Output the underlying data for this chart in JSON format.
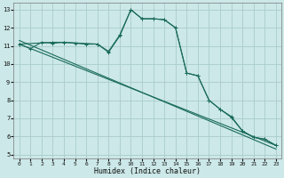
{
  "xlabel": "Humidex (Indice chaleur)",
  "background_color": "#cce8e8",
  "grid_color": "#aacccc",
  "line_color": "#1a6b5a",
  "xlim": [
    -0.5,
    23.5
  ],
  "ylim": [
    4.8,
    13.4
  ],
  "yticks": [
    5,
    6,
    7,
    8,
    9,
    10,
    11,
    12,
    13
  ],
  "xticks": [
    0,
    1,
    2,
    3,
    4,
    5,
    6,
    7,
    8,
    9,
    10,
    11,
    12,
    13,
    14,
    15,
    16,
    17,
    18,
    19,
    20,
    21,
    22,
    23
  ],
  "series1_x": [
    0,
    1,
    2,
    3,
    4,
    5,
    6,
    7,
    8,
    9,
    10,
    11,
    12,
    13,
    14,
    15,
    16,
    17,
    18,
    19,
    20,
    21,
    22,
    23
  ],
  "series1_y": [
    11.1,
    10.85,
    11.2,
    11.15,
    11.2,
    11.15,
    11.1,
    11.1,
    10.7,
    11.6,
    13.0,
    12.5,
    12.5,
    12.45,
    12.0,
    9.5,
    9.35,
    8.0,
    7.5,
    7.1,
    6.3,
    5.95,
    5.85,
    5.5
  ],
  "series2_x": [
    0,
    3,
    4,
    7,
    8,
    9,
    10,
    11,
    12,
    13,
    14,
    15,
    16,
    17,
    18,
    19,
    20,
    21,
    22,
    23
  ],
  "series2_y": [
    11.1,
    11.2,
    11.2,
    11.1,
    10.65,
    11.55,
    13.0,
    12.5,
    12.5,
    12.45,
    12.0,
    9.5,
    9.35,
    8.0,
    7.5,
    7.05,
    6.3,
    5.95,
    5.85,
    5.5
  ],
  "series3_x": [
    0,
    23
  ],
  "series3_y": [
    11.1,
    5.5
  ],
  "series4_x": [
    0,
    23
  ],
  "series4_y": [
    11.1,
    5.5
  ]
}
